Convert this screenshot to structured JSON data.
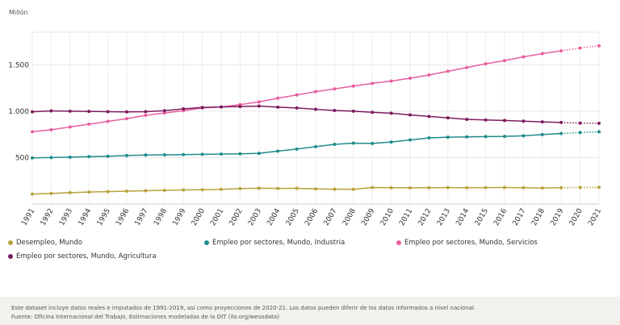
{
  "chart_data": {
    "type": "line",
    "unit_label": "Millón",
    "x": [
      "1991",
      "1992",
      "1993",
      "1994",
      "1995",
      "1996",
      "1997",
      "1998",
      "1999",
      "2000",
      "2001",
      "2002",
      "2003",
      "2004",
      "2005",
      "2006",
      "2007",
      "2008",
      "2009",
      "2010",
      "2011",
      "2012",
      "2013",
      "2014",
      "2015",
      "2016",
      "2017",
      "2018",
      "2019",
      "2020",
      "2021"
    ],
    "projection_start": "2019",
    "ylim": [
      0,
      1850
    ],
    "yticks": [
      500,
      1000,
      1500
    ],
    "ytick_labels": [
      "500",
      "1.000",
      "1.500"
    ],
    "grid": true,
    "legend_position": "bottom",
    "series": [
      {
        "name": "Desempleo, Mundo",
        "color": "#b8a23a",
        "values": [
          108,
          114,
          123,
          129,
          134,
          139,
          143,
          148,
          152,
          154,
          158,
          166,
          170,
          168,
          169,
          163,
          160,
          159,
          178,
          176,
          175,
          176,
          177,
          176,
          177,
          178,
          176,
          173,
          176,
          178,
          180
        ]
      },
      {
        "name": "Empleo por sectores, Mundo, Industria",
        "color": "#1f8b8b",
        "values": [
          497,
          501,
          505,
          510,
          515,
          522,
          528,
          530,
          532,
          535,
          538,
          541,
          546,
          570,
          592,
          618,
          643,
          656,
          652,
          668,
          690,
          712,
          720,
          723,
          726,
          728,
          735,
          748,
          760,
          770,
          778
        ]
      },
      {
        "name": "Empleo por sectores, Mundo, Servicios",
        "color": "#e65f9e",
        "values": [
          778,
          800,
          830,
          860,
          890,
          920,
          955,
          980,
          1005,
          1035,
          1045,
          1070,
          1100,
          1140,
          1175,
          1210,
          1240,
          1270,
          1300,
          1325,
          1355,
          1390,
          1430,
          1470,
          1510,
          1545,
          1585,
          1620,
          1650,
          1680,
          1705
        ]
      },
      {
        "name": "Empleo por sectores, Mundo, Agricultura",
        "color": "#7d1b5f",
        "values": [
          993,
          1003,
          1000,
          998,
          995,
          992,
          995,
          1005,
          1025,
          1040,
          1045,
          1050,
          1055,
          1043,
          1035,
          1020,
          1008,
          1000,
          988,
          978,
          960,
          943,
          928,
          912,
          905,
          900,
          892,
          885,
          878,
          872,
          870
        ]
      }
    ]
  },
  "footer": {
    "note": "Este dataset incluye datos reales e imputados de 1991-2019, así como proyecciones de 2020-21. Los datos pueden diferir de los datos informados a nivel nacional.",
    "source": "Fuente: Oficina Internacional del Trabajo, Estimaciones modeladas de la OIT (ilo.org/wesodata)"
  }
}
